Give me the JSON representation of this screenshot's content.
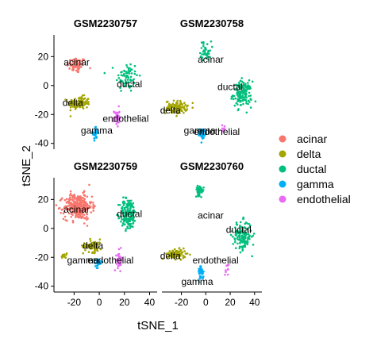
{
  "chart_data": {
    "type": "scatter",
    "xlabel": "tSNE_1",
    "ylabel": "tSNE_2",
    "xlim": [
      -36,
      46
    ],
    "ylim": [
      -44,
      35
    ],
    "x_ticks": [
      -20,
      0,
      20,
      40
    ],
    "x_tick_labels": [
      "-20",
      "0",
      "20",
      "40"
    ],
    "y_ticks": [
      20,
      0,
      -20,
      -40
    ],
    "y_tick_labels": [
      "20",
      "0",
      "-20",
      "-40"
    ],
    "grid": false,
    "legend_position": "right",
    "legend": [
      {
        "name": "acinar",
        "color": "#F8766D"
      },
      {
        "name": "delta",
        "color": "#A3A500"
      },
      {
        "name": "ductal",
        "color": "#00BF7D"
      },
      {
        "name": "gamma",
        "color": "#00B0F6"
      },
      {
        "name": "endothelial",
        "color": "#E76BF3"
      }
    ],
    "panels": [
      {
        "title": "GSM2230757",
        "labels": [
          {
            "text": "acinar",
            "x": -18,
            "y": 16
          },
          {
            "text": "ductal",
            "x": 24,
            "y": 1
          },
          {
            "text": "delta",
            "x": -21,
            "y": -12
          },
          {
            "text": "endothelial",
            "x": 21,
            "y": -23
          },
          {
            "text": "gamma",
            "x": -2,
            "y": -31
          }
        ],
        "clusters": [
          {
            "color": "#F8766D",
            "cx": -18,
            "cy": 14,
            "sx": 7,
            "sy": 5,
            "n": 70
          },
          {
            "color": "#00BF7D",
            "cx": 22,
            "cy": 6,
            "sx": 8,
            "sy": 10,
            "n": 70
          },
          {
            "color": "#A3A500",
            "cx": -16,
            "cy": -12,
            "sx": 8,
            "sy": 4,
            "n": 100
          },
          {
            "color": "#E76BF3",
            "cx": 14,
            "cy": -22,
            "sx": 2,
            "sy": 6,
            "n": 40
          },
          {
            "color": "#00B0F6",
            "cx": -3,
            "cy": -33,
            "sx": 2,
            "sy": 4,
            "n": 30
          }
        ]
      },
      {
        "title": "GSM2230758",
        "labels": [
          {
            "text": "acinar",
            "x": 4,
            "y": 18
          },
          {
            "text": "ductal",
            "x": 20,
            "y": -1
          },
          {
            "text": "delta",
            "x": -29,
            "y": -17
          },
          {
            "text": "gamma",
            "x": -5,
            "y": -31
          },
          {
            "text": "endothelial",
            "x": 9,
            "y": -32
          }
        ],
        "clusters": [
          {
            "color": "#00BF7D",
            "cx": 0,
            "cy": 24,
            "sx": 4,
            "sy": 6,
            "n": 40
          },
          {
            "color": "#00BF7D",
            "cx": 30,
            "cy": -6,
            "sx": 7,
            "sy": 8,
            "n": 150
          },
          {
            "color": "#A3A500",
            "cx": -24,
            "cy": -15,
            "sx": 8,
            "sy": 4,
            "n": 110
          },
          {
            "color": "#00B0F6",
            "cx": -3,
            "cy": -33,
            "sx": 2,
            "sy": 3,
            "n": 45
          },
          {
            "color": "#E76BF3",
            "cx": 15,
            "cy": -30,
            "sx": 1.5,
            "sy": 3,
            "n": 10
          }
        ]
      },
      {
        "title": "GSM2230759",
        "labels": [
          {
            "text": "acinar",
            "x": -18,
            "y": 13
          },
          {
            "text": "ductal",
            "x": 24,
            "y": 10
          },
          {
            "text": "delta",
            "x": -5,
            "y": -12
          },
          {
            "text": "gamma",
            "x": -13,
            "y": -22
          },
          {
            "text": "endothelial",
            "x": 9,
            "y": -22
          }
        ],
        "clusters": [
          {
            "color": "#F8766D",
            "cx": -17,
            "cy": 15,
            "sx": 10,
            "sy": 8,
            "n": 320
          },
          {
            "color": "#00BF7D",
            "cx": 23,
            "cy": 10,
            "sx": 6,
            "sy": 10,
            "n": 160
          },
          {
            "color": "#A3A500",
            "cx": -5,
            "cy": -12,
            "sx": 7,
            "sy": 4,
            "n": 70
          },
          {
            "color": "#A3A500",
            "cx": -28,
            "cy": -19,
            "sx": 2,
            "sy": 2,
            "n": 12
          },
          {
            "color": "#00B0F6",
            "cx": -1,
            "cy": -24,
            "sx": 2,
            "sy": 3,
            "n": 25
          },
          {
            "color": "#E76BF3",
            "cx": 16,
            "cy": -22,
            "sx": 2,
            "sy": 6,
            "n": 40
          }
        ]
      },
      {
        "title": "GSM2230760",
        "labels": [
          {
            "text": "acinar",
            "x": 4,
            "y": 9
          },
          {
            "text": "ductal",
            "x": 27,
            "y": -1
          },
          {
            "text": "delta",
            "x": -29,
            "y": -19
          },
          {
            "text": "endothelial",
            "x": 8,
            "y": -22
          },
          {
            "text": "gamma",
            "x": -7,
            "y": -37
          }
        ],
        "clusters": [
          {
            "color": "#00BF7D",
            "cx": -5,
            "cy": 26,
            "sx": 3,
            "sy": 3,
            "n": 40
          },
          {
            "color": "#00BF7D",
            "cx": 30,
            "cy": -5,
            "sx": 7,
            "sy": 9,
            "n": 150
          },
          {
            "color": "#A3A500",
            "cx": -24,
            "cy": -18,
            "sx": 7,
            "sy": 3,
            "n": 90
          },
          {
            "color": "#00B0F6",
            "cx": -4,
            "cy": -30,
            "sx": 2,
            "sy": 5,
            "n": 40
          },
          {
            "color": "#E76BF3",
            "cx": 17,
            "cy": -30,
            "sx": 2,
            "sy": 5,
            "n": 10
          }
        ]
      }
    ]
  }
}
